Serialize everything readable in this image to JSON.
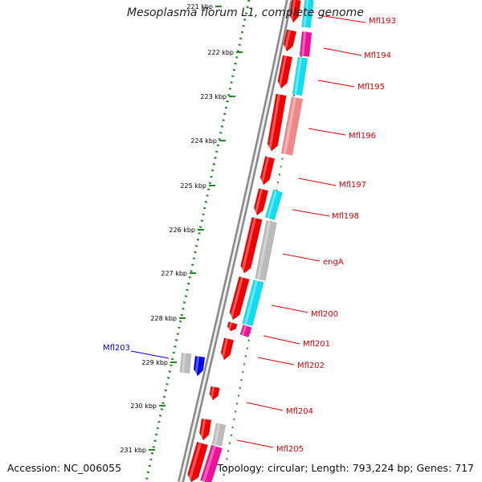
{
  "title": "Mesoplasma florum L1, complete genome",
  "footer": {
    "accession": "Accession: NC_006055",
    "summary": "Topology: circular; Length: 793,224 bp; Genes: 717"
  },
  "colors": {
    "backbone": "#888888",
    "scale_dots": "#1f8a1f",
    "label_red": "#dd0000",
    "label_blue": "#0000cc",
    "gene_red": "#ee0000",
    "gene_magenta": "#ee1199",
    "gene_cyan": "#11ddee",
    "gene_pink": "#f08888",
    "gene_gray": "#bbbbbb",
    "gene_blue": "#0000ee"
  },
  "scale_labels": [
    "221 kbp",
    "222 kbp",
    "223 kbp",
    "224 kbp",
    "225 kbp",
    "226 kbp",
    "227 kbp",
    "228 kbp",
    "229 kbp",
    "230 kbp",
    "231 kbp"
  ],
  "gene_labels": [
    {
      "text": "Mfl193",
      "strand": "plus"
    },
    {
      "text": "Mfl194",
      "strand": "plus"
    },
    {
      "text": "Mfl195",
      "strand": "plus"
    },
    {
      "text": "Mfl196",
      "strand": "plus"
    },
    {
      "text": "Mfl197",
      "strand": "plus"
    },
    {
      "text": "Mfl198",
      "strand": "plus"
    },
    {
      "text": "engA",
      "strand": "plus"
    },
    {
      "text": "Mfl200",
      "strand": "plus"
    },
    {
      "text": "Mfl201",
      "strand": "plus"
    },
    {
      "text": "Mfl202",
      "strand": "plus"
    },
    {
      "text": "Mfl203",
      "strand": "minus"
    },
    {
      "text": "Mfl204",
      "strand": "plus"
    },
    {
      "text": "Mfl205",
      "strand": "plus"
    }
  ]
}
